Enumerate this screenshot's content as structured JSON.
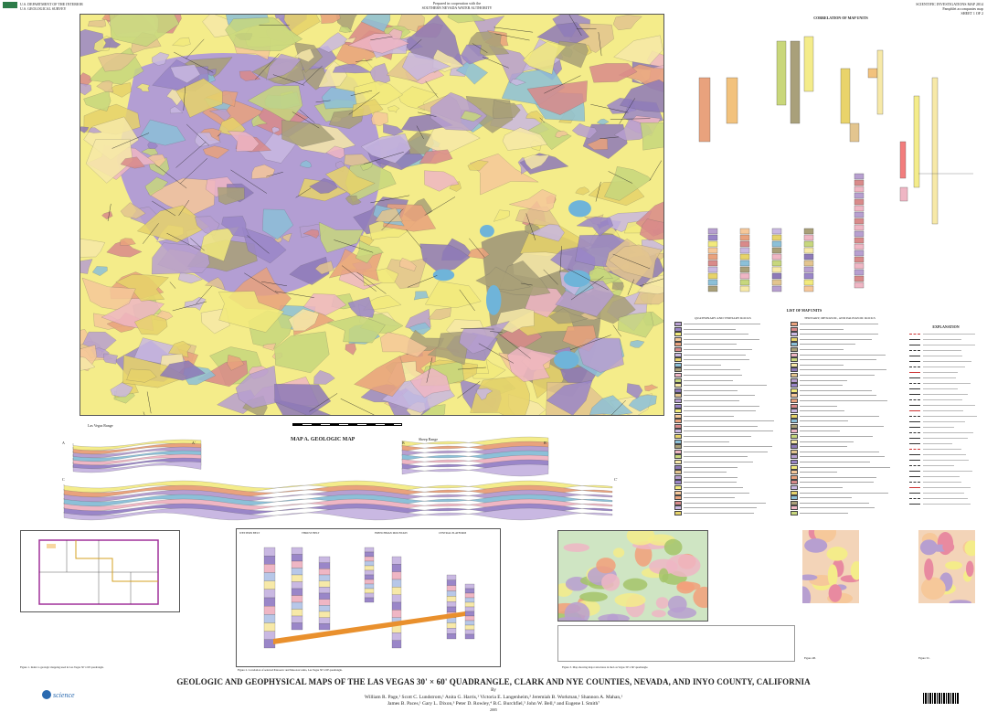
{
  "header": {
    "agency_line1": "U.S. DEPARTMENT OF THE INTERIOR",
    "agency_line2": "U.S. GEOLOGICAL SURVEY",
    "cooperation_line1": "Prepared in cooperation with the",
    "cooperation_line2": "SOUTHERN NEVADA WATER AUTHORITY",
    "series": "SCIENTIFIC INVESTIGATIONS MAP 2814",
    "series_sub": "Pamphlet accompanies map",
    "sheet": "SHEET 1 OF 2"
  },
  "map": {
    "title": "MAP A. GEOLOGIC MAP",
    "palette": [
      "#b79fd0",
      "#9a86c8",
      "#f2ea7c",
      "#f6c89a",
      "#e9a27d",
      "#d98a8a",
      "#c9b8e2",
      "#e7d36a",
      "#8cc0d8",
      "#a9a078",
      "#efb6c4",
      "#c7d77d",
      "#f7e9a8",
      "#8e7ab8",
      "#e3c58f"
    ],
    "accent_colors": {
      "water_blue": "#6fb4d9",
      "quaternary_yellow": "#f4ec8a",
      "paleozoic_purple": "#9a86c8",
      "mesozoic_green": "#a5c46a"
    }
  },
  "correlation": {
    "title": "CORRELATION OF MAP UNITS"
  },
  "list_of_units": {
    "title": "LIST OF MAP UNITS",
    "col1_heading": "QUATERNARY AND TERTIARY ROCKS",
    "col2_heading": "TERTIARY, MESOZOIC, AND PALEOZOIC ROCKS"
  },
  "explanation": {
    "title": "EXPLANATION"
  },
  "cross_sections": {
    "a_label": "A",
    "a_prime": "A'",
    "b_label": "B",
    "b_prime": "B'",
    "c_label": "C",
    "c_prime": "C'",
    "range1": "Las Vegas Range",
    "range2": "Sheep Range"
  },
  "figures": {
    "fig1": "Figure 1. Index to geologic mapping used in Las Vegas 30' x 60' quadrangle.",
    "fig2": "Figure 2. Correlation of selected Paleozoic and Mesozoic units, Las Vegas 30' x 60' quadrangle.",
    "fig3": "Figure 3. Map showing major structures in the Las Vegas 30' x 60' quadrangle.",
    "fig4": "Figure 4B.",
    "fig5": "Figure 5C.",
    "fig2_headers": [
      "WESTERN BELT",
      "THRUST BELT",
      "FRENCHMAN MOUNTAIN",
      "CENTRAL PLATFORM"
    ]
  },
  "title": {
    "main": "GEOLOGIC AND GEOPHYSICAL MAPS OF THE  LAS VEGAS 30' × 60' QUADRANGLE, CLARK AND NYE COUNTIES, NEVADA, AND INYO COUNTY, CALIFORNIA",
    "by": "By",
    "authors_line1": "William R. Page,¹ Scott C. Lundstrom,¹ Anita G. Harris,¹ Victoria E. Langenheim,² Jeremiah B. Workman,¹ Shannon A. Mahan,¹",
    "authors_line2": "James B. Paces,¹ Gary L. Dixon,³ Peter D. Rowley,⁴ B.C. Burchfiel,⁵ John W. Bell,⁶ and Eugene I. Smith⁷",
    "year": "2005"
  },
  "footer": {
    "science_logo": "science for a changing world"
  }
}
